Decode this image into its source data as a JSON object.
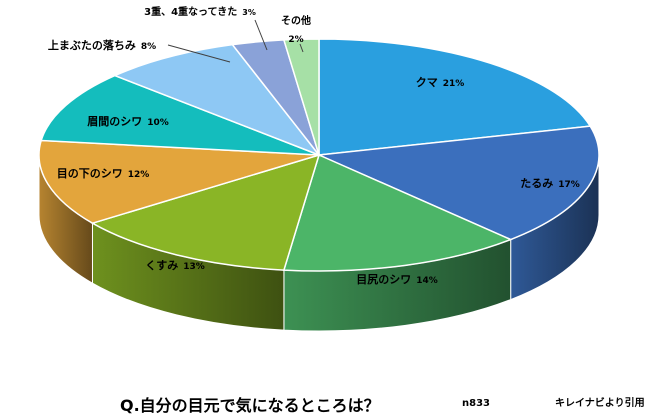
{
  "chart_data": {
    "type": "pie",
    "title": "Q.自分の目元で気になるところは？",
    "sample_size": "n833",
    "source": "キレイナビより引用",
    "slices": [
      {
        "label": "クマ",
        "value": 21,
        "pct_label": "21%",
        "color": "#2a9fdf"
      },
      {
        "label": "たるみ",
        "value": 17,
        "pct_label": "17%",
        "color": "#3b6fbd"
      },
      {
        "label": "目尻のシワ",
        "value": 14,
        "pct_label": "14%",
        "color": "#4cb568"
      },
      {
        "label": "くすみ",
        "value": 13,
        "pct_label": "13%",
        "color": "#8ab526"
      },
      {
        "label": "目の下のシワ",
        "value": 12,
        "pct_label": "12%",
        "color": "#e3a53c"
      },
      {
        "label": "眉間のシワ",
        "value": 10,
        "pct_label": "10%",
        "color": "#14bdbd"
      },
      {
        "label": "上まぶたの落ちみ",
        "value": 8,
        "pct_label": "8%",
        "color": "#8ec8f4"
      },
      {
        "label": "3重、4重なってきた",
        "value": 3,
        "pct_label": "3%",
        "color": "#8aa2d8"
      },
      {
        "label": "その他",
        "value": 2,
        "pct_label": "2%",
        "color": "#a6e0a6"
      }
    ]
  }
}
